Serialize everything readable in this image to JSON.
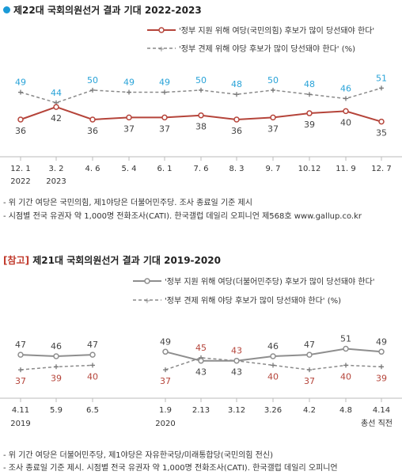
{
  "chart_data": [
    {
      "type": "line",
      "title": "제22대 국회의원선거 결과 기대 2022-2023",
      "categories": [
        "12. 1",
        "3. 2",
        "4. 6",
        "5. 4",
        "6. 1",
        "7. 6",
        "8. 3",
        "9. 7",
        "10.12",
        "11. 9",
        "12. 7"
      ],
      "year_labels": [
        {
          "index": 0,
          "label": "2022"
        },
        {
          "index": 1,
          "label": "2023"
        }
      ],
      "series": [
        {
          "name": "'정부 지원 위해 여당(국민의힘) 후보가 많이 당선돼야 한다'",
          "values": [
            36,
            42,
            36,
            37,
            37,
            38,
            36,
            37,
            39,
            40,
            35
          ],
          "color": "#b5443a",
          "style": "solid"
        },
        {
          "name": "'정부 견제 위해 야당 후보가 많이 당선돼야 한다' (%)",
          "values": [
            49,
            44,
            50,
            49,
            49,
            50,
            48,
            50,
            48,
            46,
            51
          ],
          "color": "#29a3d8",
          "style": "dashed"
        }
      ],
      "notes": [
        "- 위 기간 여당은 국민의힘, 제1야당은 더불어민주당. 조사 종료일 기준 제시",
        "- 시점별 전국 유권자 약 1,000명 전화조사(CATI). 한국갤럽 데일리 오피니언 제568호 www.gallup.co.kr"
      ]
    },
    {
      "type": "line",
      "title_prefix": "[참고]",
      "title": "제21대 국회의원선거 결과 기대 2019-2020",
      "categories": [
        "4.11",
        "5.9",
        "6.5",
        "1.9",
        "2.13",
        "3.12",
        "3.26",
        "4.2",
        "4.8",
        "4.14"
      ],
      "last_category_sub": "총선 직전",
      "year_labels": [
        {
          "index": 0,
          "label": "2019"
        },
        {
          "index": 3,
          "label": "2020"
        }
      ],
      "series": [
        {
          "name": "'정부 지원 위해 여당(더불어민주당) 후보가 많이 당선돼야 한다'",
          "values": [
            47,
            46,
            47,
            49,
            43,
            43,
            46,
            47,
            51,
            49
          ],
          "color": "#8e8e8e",
          "style": "solid",
          "label_colors": [
            "#444444",
            "#444444",
            "#444444",
            "#444444",
            "#444444",
            "#444444",
            "#444444",
            "#444444",
            "#444444",
            "#444444"
          ]
        },
        {
          "name": "'정부 견제 위해 야당 후보가 많이 당선돼야 한다' (%)",
          "values": [
            37,
            39,
            40,
            37,
            45,
            43,
            40,
            37,
            40,
            39
          ],
          "color": "#9a9a9a",
          "style": "dashed",
          "label_colors": [
            "#b5443a",
            "#b5443a",
            "#b5443a",
            "#b5443a",
            "#b5443a",
            "#b5443a",
            "#b5443a",
            "#b5443a",
            "#b5443a",
            "#b5443a"
          ]
        }
      ],
      "notes": [
        "- 위 기간 여당은 더불어민주당, 제1야당은 자유한국당/미래통합당(국민의힘 전신)",
        "- 조사 종료일 기준 제시. 시점별 전국 유권자 약 1,000명 전화조사(CATI). 한국갤럽 데일리 오피니언"
      ]
    }
  ]
}
